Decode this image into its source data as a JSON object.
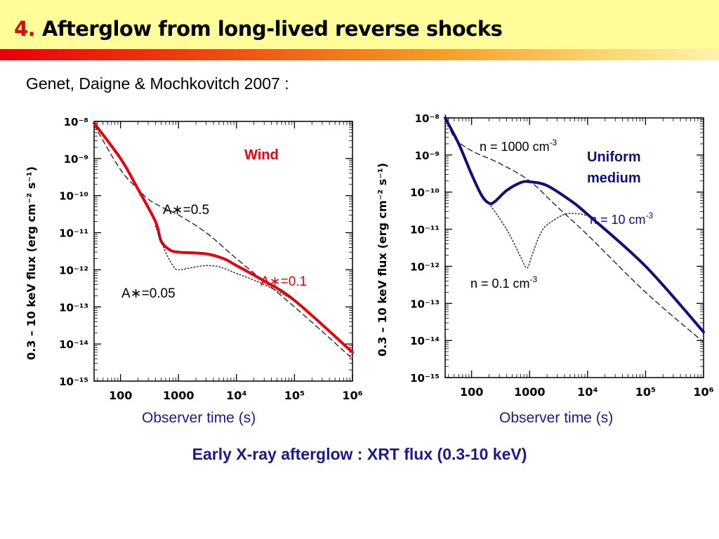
{
  "header": {
    "number": "4.",
    "title": "Afterglow from long-lived reverse shocks"
  },
  "subtitle": "Genet, Daigne & Mochkovitch 2007 :",
  "caption": "Early X-ray afterglow : XRT flux (0.3-10 keV)",
  "colors": {
    "red": "#e8000a",
    "navy": "#101075",
    "blue_text": "#1a1a8c"
  },
  "chart_data": [
    {
      "type": "line",
      "scale": "log-log",
      "ylabel": "0.3 – 10 keV flux (erg cm⁻² s⁻¹)",
      "xlabel": "Observer time (s)",
      "xlim": [
        35,
        1000000
      ],
      "ylim": [
        1e-15,
        1e-08
      ],
      "x_ticks": [
        "100",
        "1000",
        "10⁴",
        "10⁵",
        "10⁶"
      ],
      "y_ticks": [
        "10⁻⁸",
        "10⁻⁹",
        "10⁻¹⁰",
        "10⁻¹¹",
        "10⁻¹²",
        "10⁻¹³",
        "10⁻¹⁴",
        "10⁻¹⁵"
      ],
      "label_wind": "Wind",
      "annotations": {
        "a05": "A∗=0.5",
        "a01": "A∗=0.1",
        "a005": "A∗=0.05"
      },
      "series": [
        {
          "name": "A∗=0.5",
          "style": "dashed",
          "color": "#333333",
          "x": [
            35,
            100,
            200,
            300,
            500,
            1000,
            3000,
            10000,
            100000,
            1000000
          ],
          "y": [
            8e-09,
            5e-10,
            1.5e-10,
            8e-11,
            5e-11,
            3e-11,
            1e-11,
            2e-12,
            1e-13,
            4e-15
          ]
        },
        {
          "name": "A∗=0.1",
          "style": "solid",
          "color": "#e8000a",
          "x": [
            35,
            100,
            200,
            400,
            500,
            700,
            1000,
            3000,
            6000,
            10000,
            30000,
            100000,
            1000000
          ],
          "y": [
            9e-09,
            1e-09,
            1.5e-10,
            2e-11,
            6e-12,
            3.5e-12,
            3e-12,
            2.7e-12,
            2e-12,
            1.3e-12,
            5e-13,
            1.5e-13,
            6e-15
          ]
        },
        {
          "name": "A∗=0.05",
          "style": "dotted",
          "color": "#333333",
          "x": [
            400,
            600,
            800,
            1000,
            2000,
            3000,
            5000,
            10000,
            30000,
            100000
          ],
          "y": [
            1.5e-11,
            3e-12,
            1.3e-12,
            1e-12,
            1.2e-12,
            1.3e-12,
            1.2e-12,
            8e-13,
            4e-13,
            1.5e-13
          ]
        }
      ]
    },
    {
      "type": "line",
      "scale": "log-log",
      "ylabel": "0.3 – 10 keV flux (erg cm⁻² s⁻¹)",
      "xlabel": "Observer time (s)",
      "xlim": [
        35,
        1000000
      ],
      "ylim": [
        1e-15,
        1e-08
      ],
      "x_ticks": [
        "100",
        "1000",
        "10⁴",
        "10⁵",
        "10⁶"
      ],
      "y_ticks": [
        "10⁻⁸",
        "10⁻⁹",
        "10⁻¹⁰",
        "10⁻¹¹",
        "10⁻¹²",
        "10⁻¹³",
        "10⁻¹⁴",
        "10⁻¹⁵"
      ],
      "label_uniform": "Uniform",
      "label_medium": "medium",
      "annotations": {
        "n1000": "n = 1000 cm",
        "n10": "n = 10 cm",
        "n01": "n = 0.1 cm",
        "unit_exp": "-3"
      },
      "series": [
        {
          "name": "n = 1000 cm⁻³",
          "style": "dashed",
          "color": "#333333",
          "x": [
            35,
            50,
            100,
            300,
            1000,
            3000,
            10000,
            100000,
            1000000
          ],
          "y": [
            1.2e-08,
            3e-09,
            1.3e-09,
            6e-10,
            2e-10,
            4e-11,
            7e-12,
            2e-13,
            9e-15
          ]
        },
        {
          "name": "n = 10 cm⁻³",
          "style": "solid",
          "color": "#101075",
          "x": [
            35,
            60,
            100,
            150,
            200,
            250,
            400,
            700,
            1000,
            2000,
            5000,
            10000,
            100000,
            1000000
          ],
          "y": [
            1e-08,
            2e-09,
            3e-10,
            8e-11,
            5e-11,
            5.5e-11,
            1.1e-10,
            1.8e-10,
            1.9e-10,
            1.5e-10,
            6e-11,
            2.5e-11,
            1e-12,
            1.7e-14
          ]
        },
        {
          "name": "n = 0.1 cm⁻³",
          "style": "dotted",
          "color": "#333333",
          "x": [
            200,
            400,
            700,
            900,
            1100,
            1500,
            2000,
            4000,
            7000,
            10000
          ],
          "y": [
            5e-11,
            1e-11,
            1.8e-12,
            9e-13,
            2e-12,
            7e-12,
            1.3e-11,
            2.5e-11,
            2.6e-11,
            2.3e-11
          ]
        }
      ]
    }
  ]
}
